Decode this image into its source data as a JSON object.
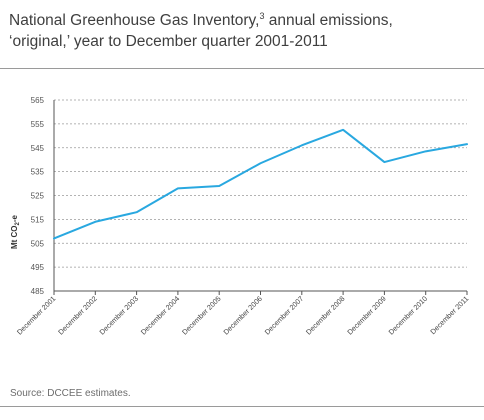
{
  "header": {
    "title_line1": "National Greenhouse Gas Inventory,",
    "title_sup": "3",
    "title_line1_end": " annual emissions,",
    "title_line2": "‘original,’ year to December quarter 2001-2011"
  },
  "footer": {
    "source": "Source: DCCEE estimates."
  },
  "chart_data": {
    "type": "line",
    "title": "National Greenhouse Gas Inventory, annual emissions, ‘original,’ year to December quarter 2001-2011",
    "ylabel": "Mt CO2-e",
    "ylabel_main": "Mt CO",
    "ylabel_sub": "2",
    "ylabel_end": "-e",
    "xlabel": "",
    "ylim": [
      485,
      565
    ],
    "yticks": [
      485,
      495,
      505,
      515,
      525,
      535,
      545,
      555,
      565
    ],
    "grid": "horizontal dashed",
    "categories": [
      "December 2001",
      "December 2002",
      "December 2003",
      "December 2004",
      "December 2005",
      "December 2006",
      "December 2007",
      "December 2008",
      "December 2009",
      "December 2010",
      "December 2011"
    ],
    "series": [
      {
        "values": [
          507,
          514,
          518,
          528,
          529,
          538.5,
          546,
          552.5,
          539,
          543.5,
          546.5
        ],
        "color": "#29a8e0"
      }
    ]
  }
}
